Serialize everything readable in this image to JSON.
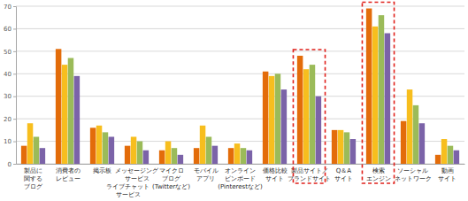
{
  "chart_data": {
    "type": "bar",
    "categories": [
      "製品に\n関する\nブログ",
      "消費者の\nレビュー",
      "掲示板",
      "メッセージング\nサービス\nライブチャット\nサービス",
      "マイクロ\nブログ\n(Twitterなど)",
      "モバイル\nアプリ",
      "オンライン\nピンボード\n(Pinterestなど)",
      "価格比較\nサイト",
      "製品サイト／\nブランドサイト",
      "Q＆A\nサイト",
      "検索\nエンジン",
      "ソーシャル\nネットワーク",
      "動画\nサイト"
    ],
    "series": [
      {
        "color": "#e36c0a",
        "values": [
          8,
          51,
          16,
          8,
          6,
          7,
          7,
          41,
          48,
          15,
          69,
          19,
          4
        ]
      },
      {
        "color": "#f7be1e",
        "values": [
          18,
          44,
          17,
          12,
          10,
          17,
          9,
          39,
          42,
          15,
          61,
          33,
          11
        ]
      },
      {
        "color": "#9bbb59",
        "values": [
          12,
          47,
          14,
          10,
          7,
          12,
          7,
          40,
          44,
          14,
          66,
          26,
          8
        ]
      },
      {
        "color": "#7b63a8",
        "values": [
          7,
          39,
          12,
          6,
          4,
          8,
          6,
          33,
          30,
          11,
          58,
          18,
          6
        ]
      }
    ],
    "ylim": [
      0,
      70
    ],
    "yticks": [
      0,
      10,
      20,
      30,
      40,
      50,
      60,
      70
    ],
    "grid": true
  }
}
